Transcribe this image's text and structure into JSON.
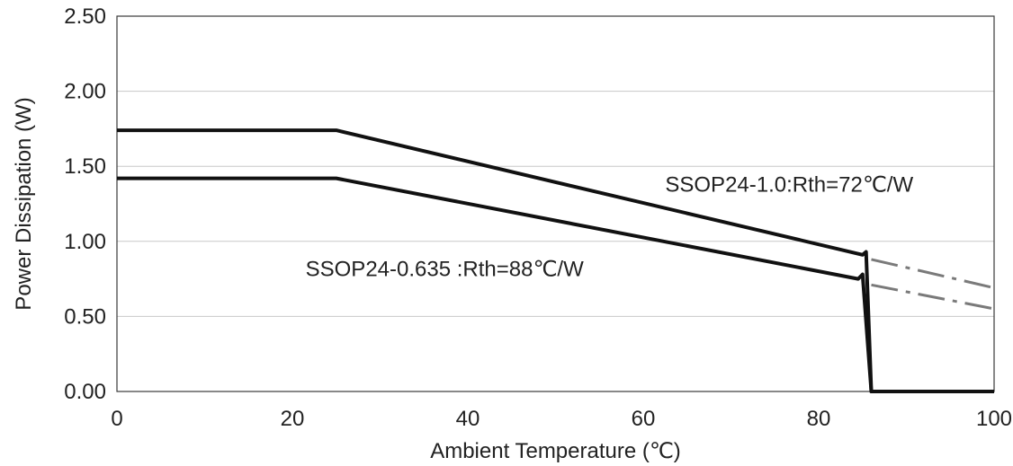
{
  "chart_data": {
    "type": "line",
    "title": "",
    "xlabel": "Ambient Temperature (℃)",
    "ylabel": "Power  Dissipation (W)",
    "xlim": [
      0,
      100
    ],
    "ylim": [
      0,
      2.5
    ],
    "x_ticks": [
      0,
      20,
      40,
      60,
      80,
      100
    ],
    "x_tick_labels": [
      "0",
      "20",
      "40",
      "60",
      "80",
      "100"
    ],
    "y_ticks": [
      0,
      0.5,
      1.0,
      1.5,
      2.0,
      2.5
    ],
    "y_tick_labels": [
      "0.00",
      "0.50",
      "1.00",
      "1.50",
      "2.00",
      "2.50"
    ],
    "grid": "horizontal",
    "series": [
      {
        "name": "SSOP24-1.0:Rth=72℃/W",
        "color": "#111111",
        "style": "solid",
        "x": [
          0,
          25,
          85,
          85.4,
          86,
          100
        ],
        "y": [
          1.74,
          1.74,
          0.91,
          0.93,
          0.0,
          0.0
        ]
      },
      {
        "name": "SSOP24-0.635 :Rth=88℃/W",
        "color": "#111111",
        "style": "solid",
        "x": [
          0,
          25,
          84.5,
          85,
          86,
          100
        ],
        "y": [
          1.42,
          1.42,
          0.75,
          0.78,
          0.0,
          0.0
        ]
      },
      {
        "name": "",
        "color": "#7a7a7a",
        "style": "dashed",
        "x": [
          86,
          100
        ],
        "y": [
          0.88,
          0.69
        ]
      },
      {
        "name": "",
        "color": "#7a7a7a",
        "style": "dashed",
        "x": [
          86,
          100
        ],
        "y": [
          0.71,
          0.55
        ]
      }
    ],
    "annotations": [
      {
        "text": "SSOP24-1.0:Rth=72℃/W",
        "x": 62.5,
        "y": 1.33
      },
      {
        "text": "SSOP24-0.635 :Rth=88℃/W",
        "x": 21.5,
        "y": 0.77
      }
    ]
  }
}
